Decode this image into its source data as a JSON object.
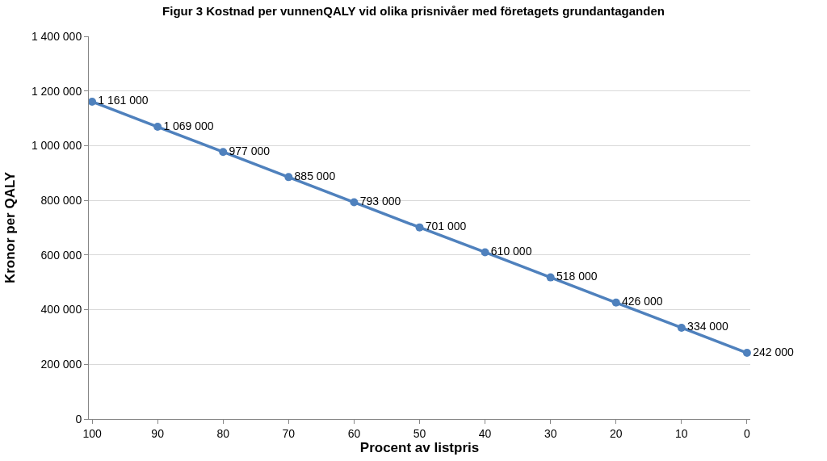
{
  "chart_data": {
    "type": "line",
    "title": "Figur 3 Kostnad per vunnenQALY vid olika prisnivåer med företagets grundantaganden",
    "xlabel": "Procent av listpris",
    "ylabel": "Kronor per QALY",
    "categories": [
      "100",
      "90",
      "80",
      "70",
      "60",
      "50",
      "40",
      "30",
      "20",
      "10",
      "0"
    ],
    "series": [
      {
        "color": "#4f81bd",
        "values": [
          1161000,
          1069000,
          977000,
          885000,
          793000,
          701000,
          610000,
          518000,
          426000,
          334000,
          242000
        ],
        "value_labels": [
          "1 161 000",
          "1 069 000",
          "977 000",
          "885 000",
          "793 000",
          "701 000",
          "610 000",
          "518 000",
          "426 000",
          "334 000",
          "242 000"
        ]
      }
    ],
    "ylim": [
      0,
      1400000
    ],
    "yticks": [
      {
        "value": 0,
        "label": "0"
      },
      {
        "value": 200000,
        "label": "200 000"
      },
      {
        "value": 400000,
        "label": "400 000"
      },
      {
        "value": 600000,
        "label": "600 000"
      },
      {
        "value": 800000,
        "label": "800 000"
      },
      {
        "value": 1000000,
        "label": "1 000 000"
      },
      {
        "value": 1200000,
        "label": "1 200 000"
      },
      {
        "value": 1400000,
        "label": "1 400 000"
      }
    ],
    "grid": "y",
    "marker": "circle",
    "line_style": "solid"
  }
}
